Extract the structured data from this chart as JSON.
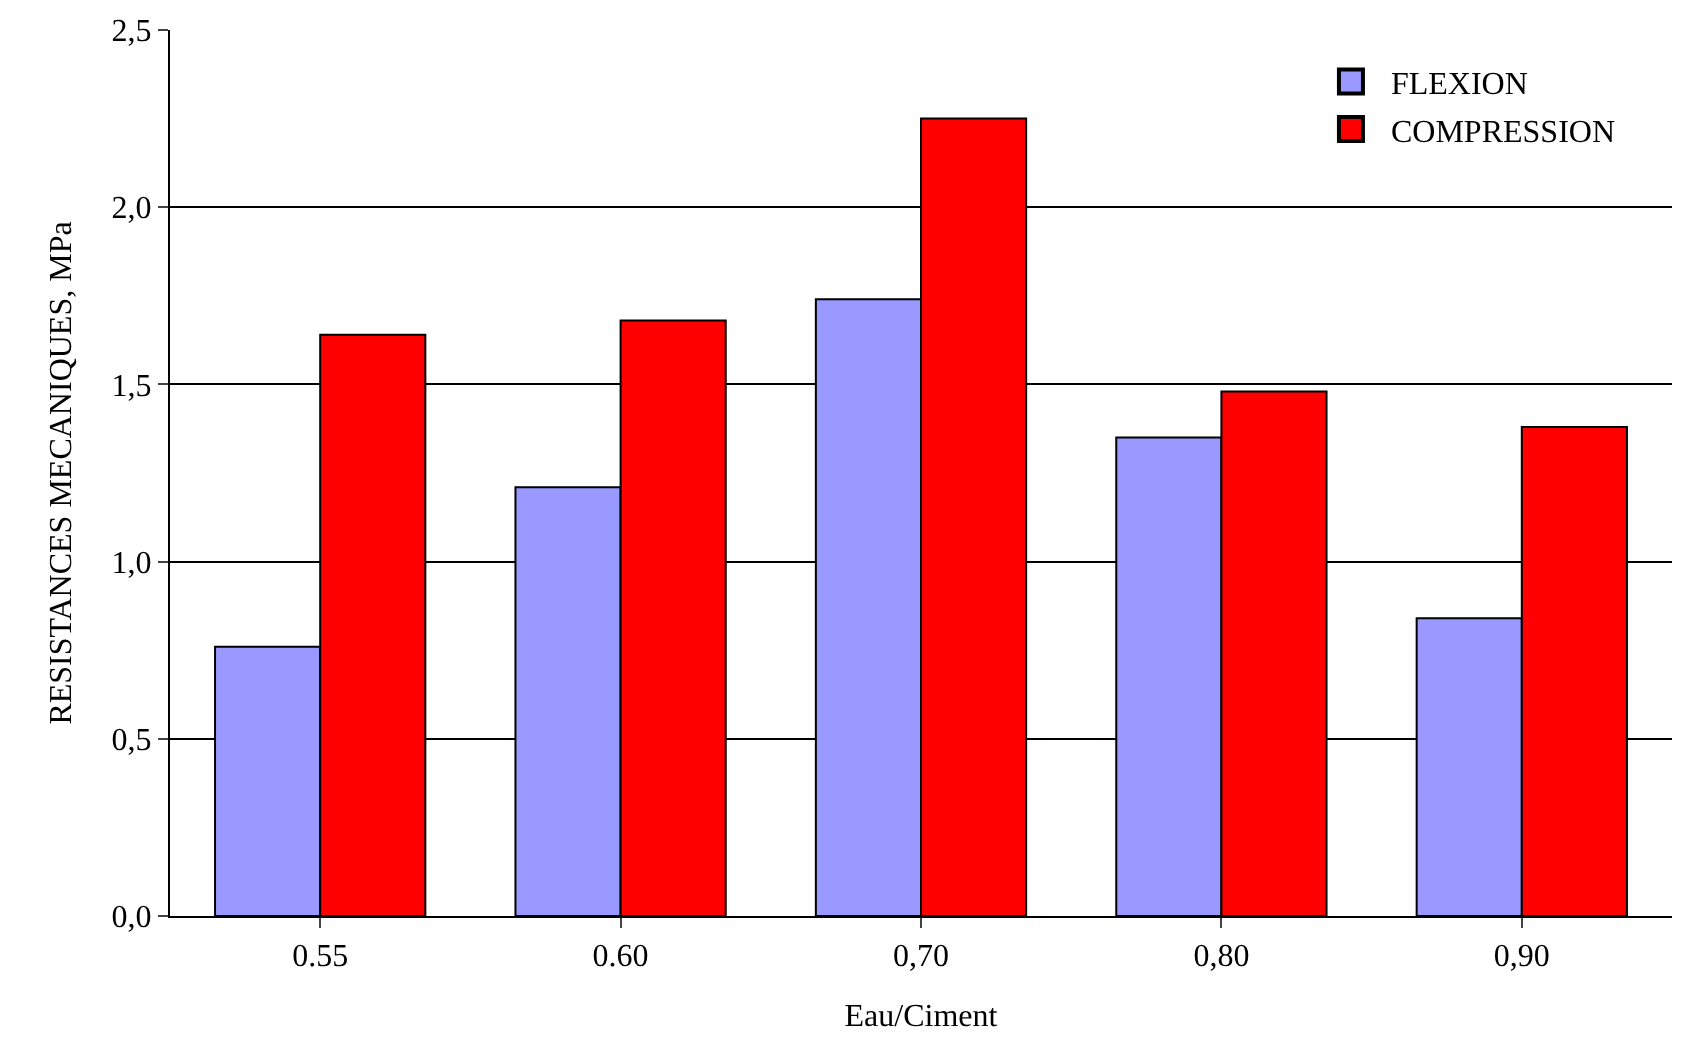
{
  "chart_data": {
    "type": "bar",
    "xlabel": "Eau/Ciment",
    "ylabel": "RESISTANCES MECANIQUES, MPa",
    "categories": [
      "0.55",
      "0.60",
      "0,70",
      "0,80",
      "0,90"
    ],
    "series": [
      {
        "name": "FLEXION",
        "color": "#9999ff",
        "values": [
          0.76,
          1.21,
          1.74,
          1.35,
          0.84
        ]
      },
      {
        "name": "COMPRESSION",
        "color": "#ff0000",
        "values": [
          1.64,
          1.68,
          2.25,
          1.48,
          1.38
        ]
      }
    ],
    "ylim": [
      0,
      2.5
    ],
    "yticks": [
      {
        "value": 0,
        "label": "0,0"
      },
      {
        "value": 0.5,
        "label": "0,5"
      },
      {
        "value": 1,
        "label": "1,0"
      },
      {
        "value": 1.5,
        "label": "1,5"
      },
      {
        "value": 2,
        "label": "2,0"
      },
      {
        "value": 2.5,
        "label": "2,5"
      }
    ],
    "grid": "y",
    "legend": "top right"
  }
}
